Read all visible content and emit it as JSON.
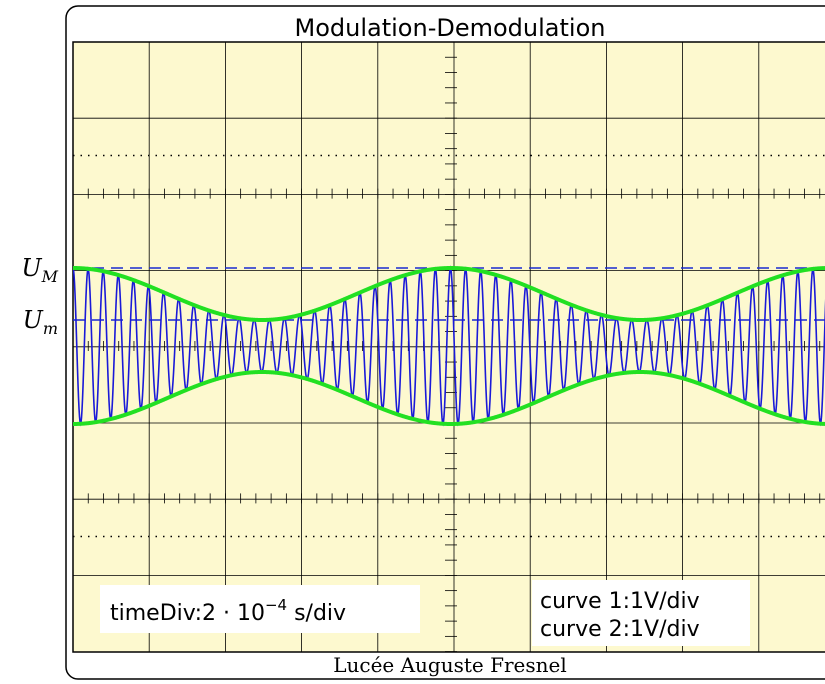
{
  "title": "Modulation-Demodulation",
  "levels": [
    {
      "symbol": "U",
      "sub": "M"
    },
    {
      "symbol": "U",
      "sub": "m"
    }
  ],
  "time_div": {
    "prefix": "timeDiv:2 · 10",
    "exponent": "−4",
    "suffix": " s/div"
  },
  "curves": [
    "curve 1:1V/div",
    "curve 2:1V/div"
  ],
  "footer": "Lucée Auguste Fresnel"
}
